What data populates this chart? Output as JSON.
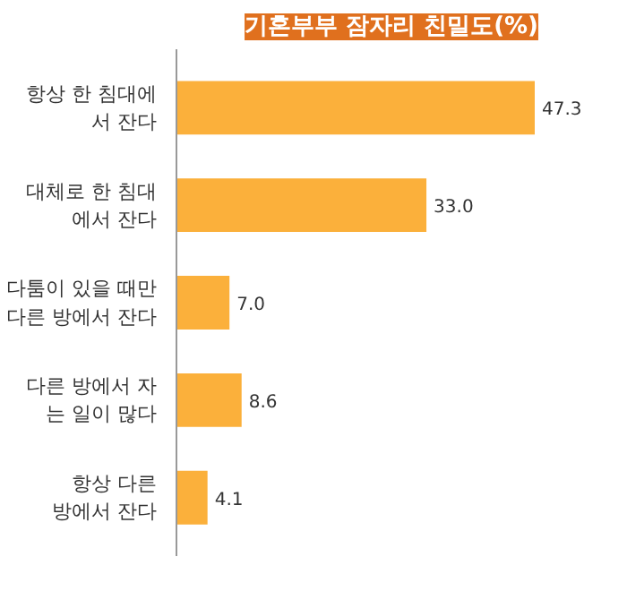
{
  "chart_data": {
    "type": "bar",
    "orientation": "horizontal",
    "title": "기혼부부 잠자리 친밀도(%)",
    "categories": [
      "항상 한 침대에\n서 잔다",
      "대체로 한 침대\n에서 잔다",
      "다툼이 있을 때만\n다른 방에서 잔다",
      "다른 방에서 자\n는 일이 많다",
      "항상 다른\n방에서 잔다"
    ],
    "values": [
      47.3,
      33.0,
      7.0,
      8.6,
      4.1
    ],
    "value_labels": [
      "47.3",
      "33.0",
      "7.0",
      "8.6",
      "4.1"
    ],
    "color": "#fbb03b",
    "grid": false,
    "tick_labels": "y"
  }
}
